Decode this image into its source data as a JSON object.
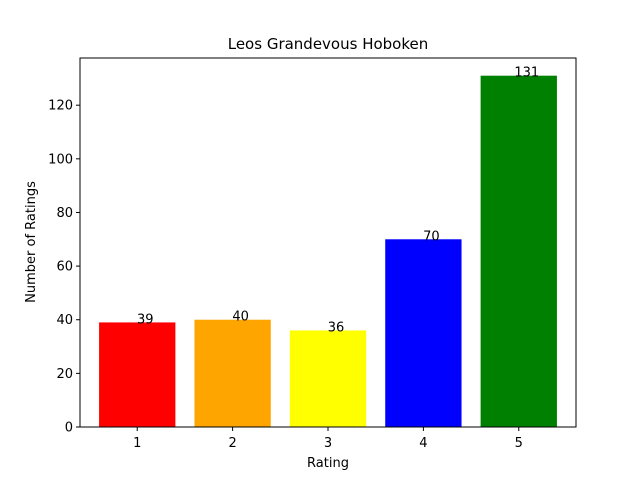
{
  "chart_data": {
    "type": "bar",
    "title": "Leos Grandevous Hoboken",
    "xlabel": "Rating",
    "ylabel": "Number of Ratings",
    "categories": [
      "1",
      "2",
      "3",
      "4",
      "5"
    ],
    "values": [
      39,
      40,
      36,
      70,
      131
    ],
    "data_labels": [
      "39",
      "40",
      "36",
      "70",
      "131"
    ],
    "colors": [
      "#ff0000",
      "#ffa500",
      "#ffff00",
      "#0000ff",
      "#008000"
    ],
    "ylim": [
      0,
      137.6
    ],
    "yticks": [
      0,
      20,
      40,
      60,
      80,
      100,
      120
    ],
    "ytick_labels": [
      "0",
      "20",
      "40",
      "60",
      "80",
      "100",
      "120"
    ],
    "grid": false,
    "legend": "none"
  }
}
